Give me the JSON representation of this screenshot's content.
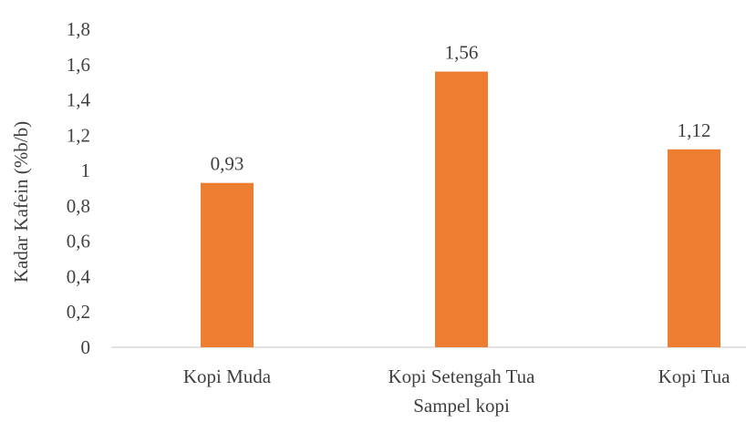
{
  "chart_data": {
    "type": "bar",
    "categories": [
      "Kopi Muda",
      "Kopi Setengah Tua",
      "Kopi Tua"
    ],
    "values": [
      0.93,
      1.56,
      1.12
    ],
    "data_labels": [
      "0,93",
      "1,56",
      "1,12"
    ],
    "title": "",
    "xlabel": "Sampel kopi",
    "ylabel": "Kadar Kafein (%b/b)",
    "ylim": [
      0,
      1.8
    ],
    "yticks": [
      0,
      0.2,
      0.4,
      0.6,
      0.8,
      1,
      1.2,
      1.4,
      1.6,
      1.8
    ],
    "ytick_labels": [
      "0",
      "0,2",
      "0,4",
      "0,6",
      "0,8",
      "1",
      "1,2",
      "1,4",
      "1,6",
      "1,8"
    ],
    "grid": false,
    "legend": "none",
    "bar_color": "#ED7D31",
    "axis_color": "#D9D9D9"
  }
}
